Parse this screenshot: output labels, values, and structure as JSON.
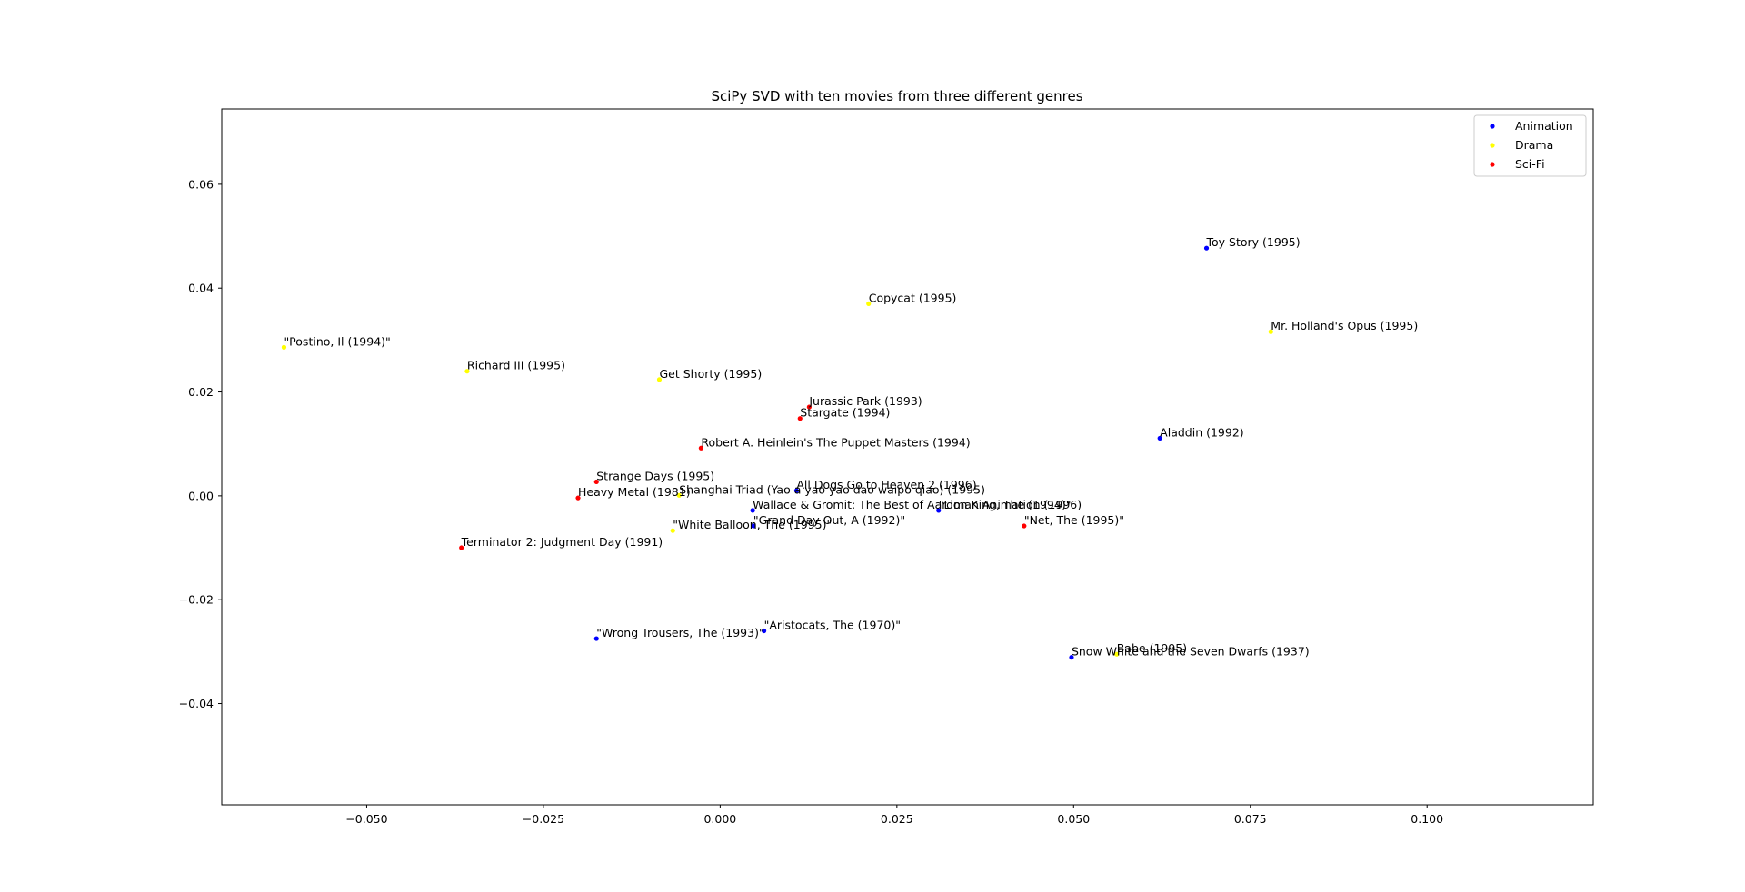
{
  "chart_data": {
    "type": "scatter",
    "title": "SciPy SVD with ten movies from three different genres",
    "xlabel": "",
    "ylabel": "",
    "xlim": [
      -0.0705,
      0.1235
    ],
    "ylim": [
      -0.0595,
      0.0745
    ],
    "xticks": [
      -0.05,
      -0.025,
      0.0,
      0.025,
      0.05,
      0.075,
      0.1
    ],
    "xtick_labels": [
      "−0.050",
      "−0.025",
      "0.000",
      "0.025",
      "0.050",
      "0.075",
      "0.100"
    ],
    "yticks": [
      0.06,
      0.04,
      0.02,
      0.0,
      -0.02,
      -0.04
    ],
    "ytick_labels": [
      "0.06",
      "0.04",
      "0.02",
      "0.00",
      "−0.02",
      "−0.04"
    ],
    "grid": false,
    "legend_position": "top-right",
    "series": [
      {
        "name": "Animation",
        "color": "#0000ff",
        "points": [
          {
            "x": 0.0688,
            "y": 0.0477,
            "label": "Toy Story (1995)"
          },
          {
            "x": 0.0622,
            "y": 0.0111,
            "label": "Aladdin (1992)"
          },
          {
            "x": 0.0108,
            "y": 0.001,
            "label": "All Dogs Go to Heaven 2 (1996)"
          },
          {
            "x": 0.0046,
            "y": -0.0028,
            "label": "Wallace & Gromit: The Best of Aardman Animation (1996)"
          },
          {
            "x": 0.0309,
            "y": -0.0028,
            "label": "\"Lion King, The (1994)\""
          },
          {
            "x": 0.0047,
            "y": -0.0058,
            "label": "\"Grand Day Out, A (1992)\""
          },
          {
            "x": 0.0062,
            "y": -0.026,
            "label": "\"Aristocats, The (1970)\""
          },
          {
            "x": -0.0175,
            "y": -0.0275,
            "label": "\"Wrong Trousers, The (1993)\""
          },
          {
            "x": 0.0497,
            "y": -0.0311,
            "label": "Snow White and the Seven Dwarfs (1937)"
          }
        ]
      },
      {
        "name": "Drama",
        "color": "#ffff00",
        "points": [
          {
            "x": 0.021,
            "y": 0.037,
            "label": "Copycat (1995)"
          },
          {
            "x": 0.0779,
            "y": 0.0316,
            "label": "Mr. Holland's Opus (1995)"
          },
          {
            "x": -0.0617,
            "y": 0.0286,
            "label": "\"Postino, Il (1994)\""
          },
          {
            "x": -0.0358,
            "y": 0.024,
            "label": "Richard III (1995)"
          },
          {
            "x": -0.0086,
            "y": 0.0224,
            "label": "Get Shorty (1995)"
          },
          {
            "x": -0.0058,
            "y": 0.0001,
            "label": "Shanghai Triad (Yao a yao yao dao waipo qiao) (1995)"
          },
          {
            "x": -0.0067,
            "y": -0.0067,
            "label": "\"White Balloon, The (1995)\""
          },
          {
            "x": 0.0561,
            "y": -0.0305,
            "label": "Babe (1995)"
          }
        ]
      },
      {
        "name": "Sci-Fi",
        "color": "#ff0000",
        "points": [
          {
            "x": 0.0126,
            "y": 0.0171,
            "label": "Jurassic Park (1993)"
          },
          {
            "x": 0.0113,
            "y": 0.0149,
            "label": "Stargate (1994)"
          },
          {
            "x": -0.0027,
            "y": 0.0092,
            "label": "Robert A. Heinlein's The Puppet Masters (1994)"
          },
          {
            "x": -0.0175,
            "y": 0.0027,
            "label": "Strange Days (1995)"
          },
          {
            "x": -0.0201,
            "y": -0.0004,
            "label": "Heavy Metal (1981)"
          },
          {
            "x": 0.043,
            "y": -0.0058,
            "label": "\"Net, The (1995)\""
          },
          {
            "x": -0.0366,
            "y": -0.01,
            "label": "Terminator 2: Judgment Day (1991)"
          }
        ]
      }
    ]
  }
}
